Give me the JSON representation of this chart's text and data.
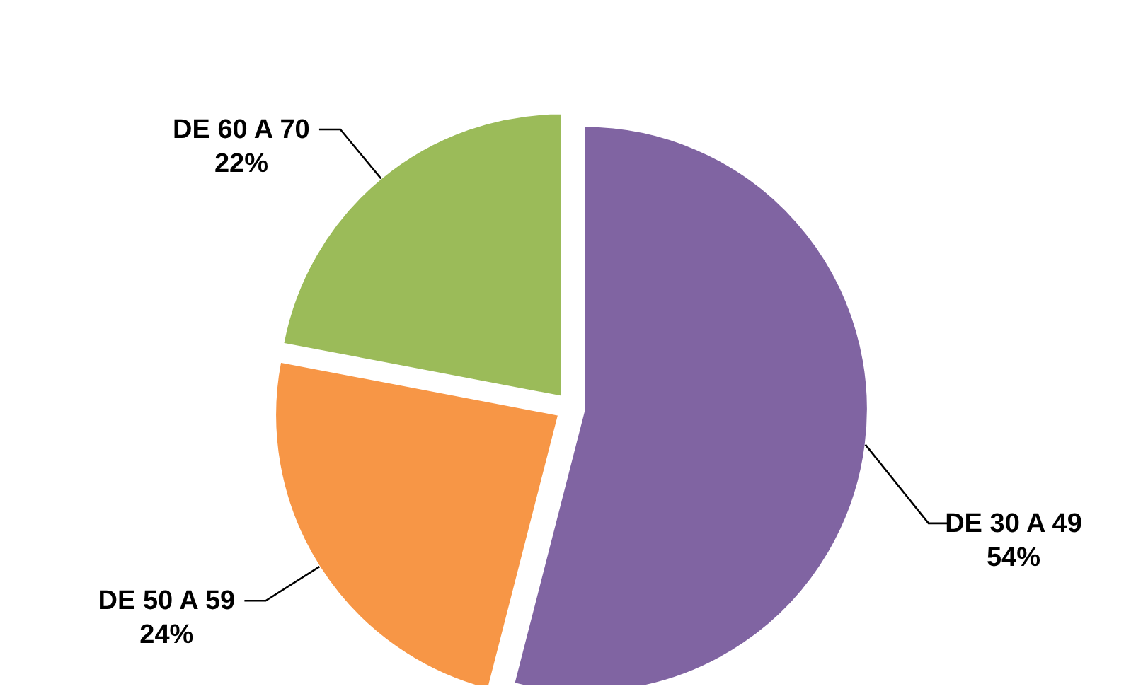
{
  "chart_data": {
    "type": "pie",
    "categories": [
      "DE 30 A 49",
      "DE 50 A 59",
      "DE 60 A 70"
    ],
    "values": [
      54,
      24,
      22
    ],
    "colors": [
      "#8064a2",
      "#f79646",
      "#9bbb59"
    ],
    "value_labels": [
      "54%",
      "24%",
      "22%"
    ]
  }
}
